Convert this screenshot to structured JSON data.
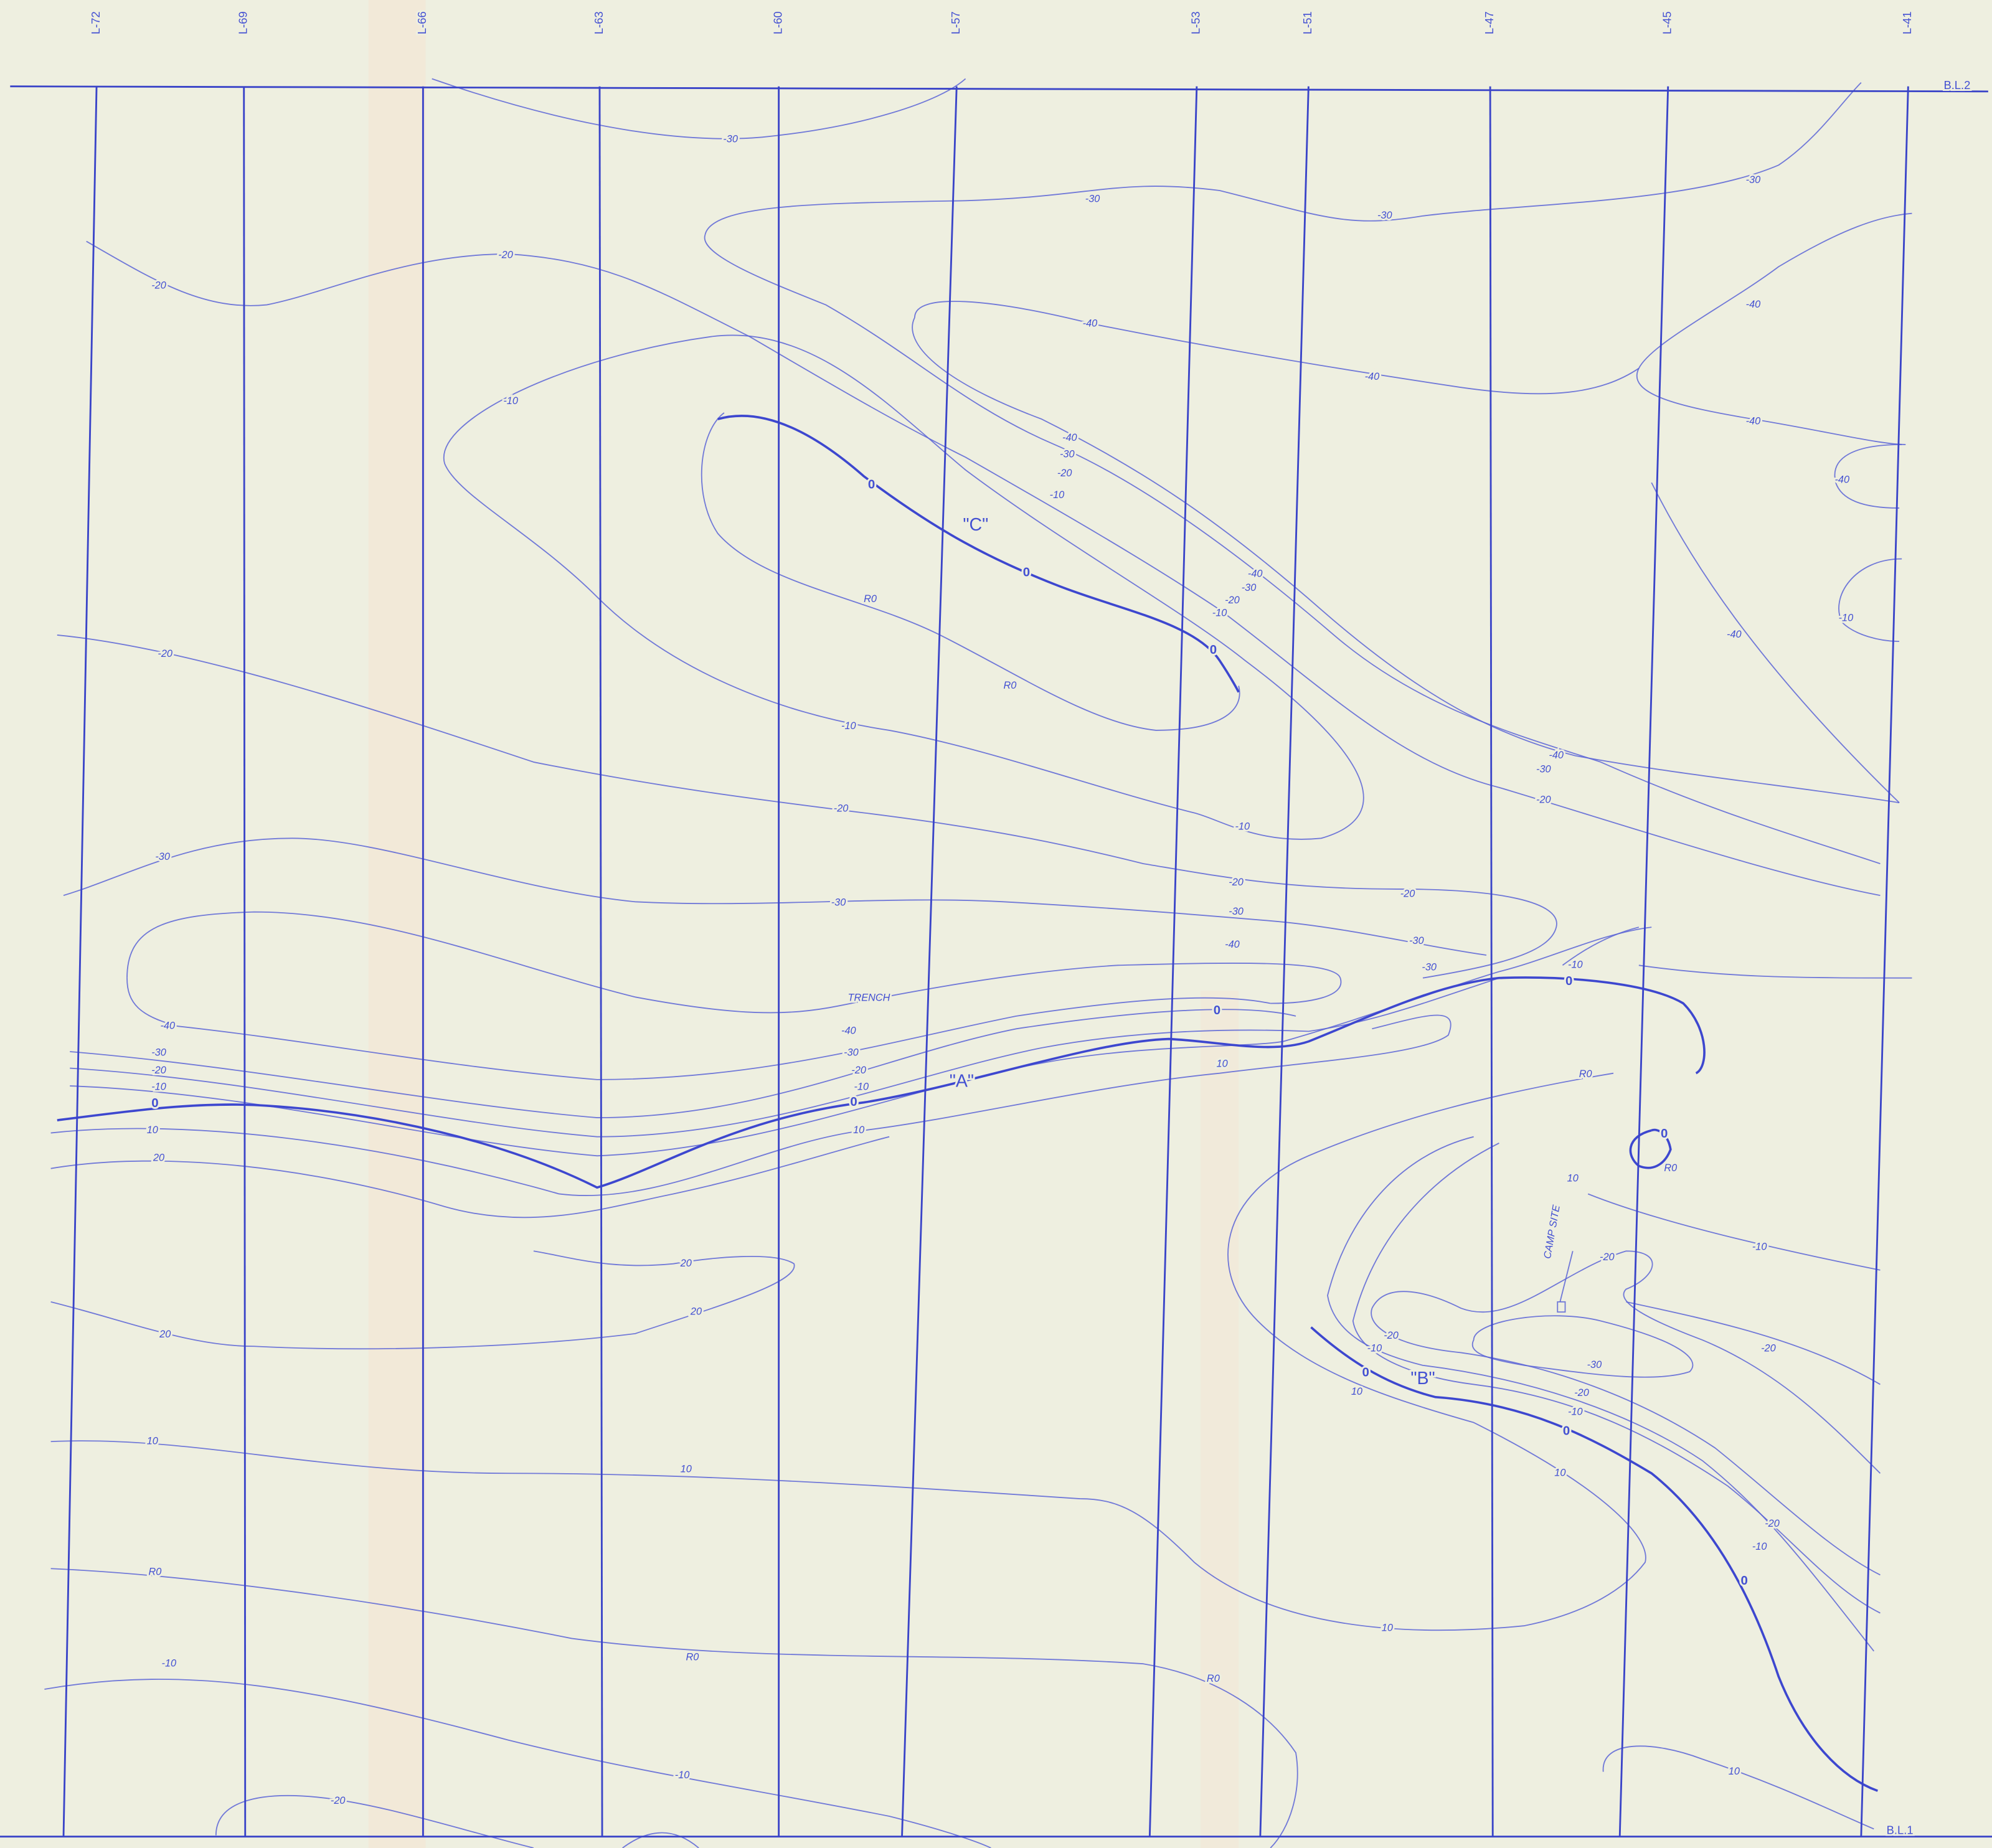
{
  "survey_lines": [
    "L-72",
    "L-69",
    "L-66",
    "L-63",
    "L-60",
    "L-57",
    "L-53",
    "L-51",
    "L-47",
    "L-45",
    "L-41"
  ],
  "baselines": {
    "top": "B.L.2",
    "bottom": "B.L.1"
  },
  "anomalies": [
    "\"A\"",
    "\"B\"",
    "\"C\""
  ],
  "annotations": {
    "trench": "TRENCH",
    "camp_site": "CAMP SITE"
  },
  "contour_labels": [
    "-30",
    "-30",
    "-30",
    "-30",
    "-20",
    "-20",
    "-40",
    "-40",
    "-40",
    "-40",
    "-10",
    "0",
    "0",
    "0",
    "R0",
    "R0",
    "-10",
    "-20",
    "-20",
    "-10",
    "-30",
    "-30",
    "-20",
    "-30",
    "-40",
    "-20",
    "-30",
    "-30",
    "-40",
    "-40",
    "-30",
    "-20",
    "-10",
    "0",
    "-40",
    "-30",
    "-20",
    "-10",
    "0",
    "10",
    "20",
    "-40",
    "-30",
    "-20",
    "-10",
    "0",
    "10",
    "0",
    "10",
    "R0",
    "10",
    "0",
    "R0",
    "-10",
    "-20",
    "-20",
    "-20",
    "-10",
    "0",
    "10",
    "-30",
    "-20",
    "-10",
    "0",
    "10",
    "-20",
    "-10",
    "0",
    "20",
    "20",
    "20",
    "10",
    "10",
    "10",
    "R0",
    "R0",
    "R0",
    "-10",
    "-10",
    "-20",
    "10",
    "-40",
    "-10",
    "-40",
    "-30",
    "-20",
    "-10",
    "-40",
    "-30",
    "-20",
    "-10"
  ]
}
